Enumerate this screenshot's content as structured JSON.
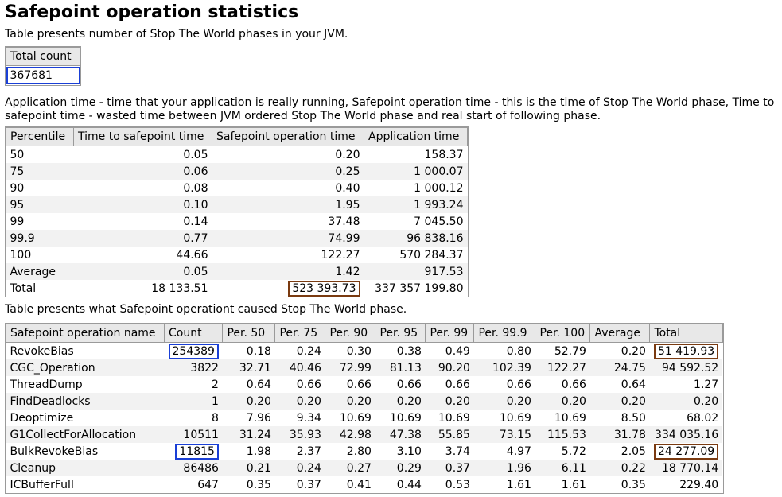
{
  "page": {
    "title": "Safepoint operation statistics",
    "subtitle": "Table presents number of Stop The World phases in your JVM.",
    "explanation": "Application time - time that your application is really running, Safepoint operation time - this is the time of Stop The World phase, Time to safepoint time - wasted time between JVM ordered Stop The World phase and real start of following phase.",
    "ops_intro": "Table presents what Safepoint operationt caused Stop The World phase."
  },
  "total_count": {
    "header": "Total count",
    "value": "367681"
  },
  "percentile_table": {
    "headers": [
      "Percentile",
      "Time to safepoint time",
      "Safepoint operation time",
      "Application time"
    ],
    "rows": [
      [
        "50",
        "0.05",
        "0.20",
        "158.37"
      ],
      [
        "75",
        "0.06",
        "0.25",
        "1 000.07"
      ],
      [
        "90",
        "0.08",
        "0.40",
        "1 000.12"
      ],
      [
        "95",
        "0.10",
        "1.95",
        "1 993.24"
      ],
      [
        "99",
        "0.14",
        "37.48",
        "7 045.50"
      ],
      [
        "99.9",
        "0.77",
        "74.99",
        "96 838.16"
      ],
      [
        "100",
        "44.66",
        "122.27",
        "570 284.37"
      ],
      [
        "Average",
        "0.05",
        "1.42",
        "917.53"
      ],
      [
        "Total",
        "18 133.51",
        "523 393.73",
        "337 357 199.80"
      ]
    ]
  },
  "ops_table": {
    "headers": [
      "Safepoint operation name",
      "Count",
      "Per. 50",
      "Per. 75",
      "Per. 90",
      "Per. 95",
      "Per. 99",
      "Per. 99.9",
      "Per. 100",
      "Average",
      "Total"
    ],
    "rows": [
      [
        "RevokeBias",
        "254389",
        "0.18",
        "0.24",
        "0.30",
        "0.38",
        "0.49",
        "0.80",
        "52.79",
        "0.20",
        "51 419.93"
      ],
      [
        "CGC_Operation",
        "3822",
        "32.71",
        "40.46",
        "72.99",
        "81.13",
        "90.20",
        "102.39",
        "122.27",
        "24.75",
        "94 592.52"
      ],
      [
        "ThreadDump",
        "2",
        "0.64",
        "0.66",
        "0.66",
        "0.66",
        "0.66",
        "0.66",
        "0.66",
        "0.64",
        "1.27"
      ],
      [
        "FindDeadlocks",
        "1",
        "0.20",
        "0.20",
        "0.20",
        "0.20",
        "0.20",
        "0.20",
        "0.20",
        "0.20",
        "0.20"
      ],
      [
        "Deoptimize",
        "8",
        "7.96",
        "9.34",
        "10.69",
        "10.69",
        "10.69",
        "10.69",
        "10.69",
        "8.50",
        "68.02"
      ],
      [
        "G1CollectForAllocation",
        "10511",
        "31.24",
        "35.93",
        "42.98",
        "47.38",
        "55.85",
        "73.15",
        "115.53",
        "31.78",
        "334 035.16"
      ],
      [
        "BulkRevokeBias",
        "11815",
        "1.98",
        "2.37",
        "2.80",
        "3.10",
        "3.74",
        "4.97",
        "5.72",
        "2.05",
        "24 277.09"
      ],
      [
        "Cleanup",
        "86486",
        "0.21",
        "0.24",
        "0.27",
        "0.29",
        "0.37",
        "1.96",
        "6.11",
        "0.22",
        "18 770.14"
      ],
      [
        "ICBufferFull",
        "647",
        "0.35",
        "0.37",
        "0.41",
        "0.44",
        "0.53",
        "1.61",
        "1.61",
        "0.35",
        "229.40"
      ]
    ]
  },
  "colors": {
    "highlight_blue": "#1a3fd6",
    "highlight_brown": "#7a3a10"
  }
}
